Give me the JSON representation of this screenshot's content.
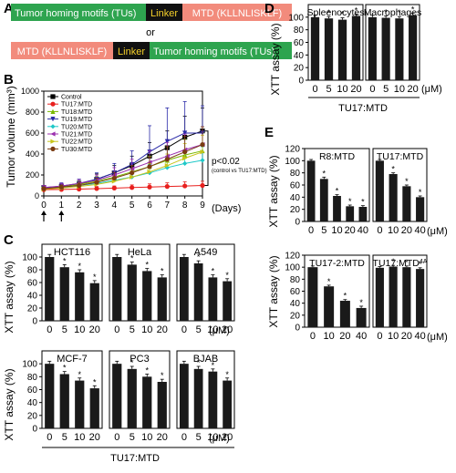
{
  "colors": {
    "green": "#2ea44f",
    "salmon": "#f28b7c",
    "linker_bg": "#111111",
    "linker_text": "#f5d02a",
    "bar": "#1a1a1a"
  },
  "panel_a": {
    "letter": "A",
    "row1": {
      "tus": "Tumor homing motifs (TUs)",
      "linker": "Linker",
      "mtd": "MTD (KLLNLISKLF)"
    },
    "or_text": "or",
    "row2": {
      "mtd": "MTD (KLLNLISKLF)",
      "linker": "Linker",
      "tus": "Tumor homing motifs (TUs)"
    }
  },
  "panel_b": {
    "letter": "B",
    "chart_data": {
      "type": "line",
      "ylabel": "Tumor volume (mm³)",
      "xlabel": "(Days)",
      "x": [
        0,
        1,
        2,
        3,
        4,
        5,
        6,
        7,
        8,
        9
      ],
      "xlim": [
        0,
        9
      ],
      "ylim": [
        0,
        1000
      ],
      "yticks": [
        0,
        200,
        400,
        600,
        800,
        1000
      ],
      "annotation": "p<0.02",
      "annotation_sub": "(control vs TU17:MTD)",
      "series": [
        {
          "name": "Control",
          "color": "#000000",
          "marker": "square",
          "values": [
            80,
            90,
            110,
            160,
            220,
            290,
            380,
            460,
            560,
            620
          ],
          "err": [
            20,
            25,
            30,
            50,
            70,
            90,
            130,
            160,
            200,
            220
          ]
        },
        {
          "name": "TU17:MTD",
          "color": "#e8201e",
          "marker": "circle",
          "values": [
            60,
            62,
            65,
            70,
            75,
            80,
            85,
            90,
            95,
            100
          ],
          "err": [
            15,
            15,
            18,
            20,
            20,
            25,
            30,
            35,
            40,
            40
          ]
        },
        {
          "name": "TU18:MTD",
          "color": "#7ab800",
          "marker": "triangle",
          "values": [
            70,
            85,
            110,
            140,
            180,
            230,
            280,
            340,
            390,
            430
          ],
          "err": [
            20,
            25,
            35,
            45,
            60,
            80,
            100,
            130,
            150,
            170
          ]
        },
        {
          "name": "TU19:MTD",
          "color": "#2a2aa8",
          "marker": "triangle-down",
          "values": [
            75,
            95,
            120,
            160,
            220,
            300,
            420,
            520,
            600,
            600
          ],
          "err": [
            20,
            30,
            40,
            60,
            90,
            130,
            250,
            320,
            300,
            260
          ]
        },
        {
          "name": "TU20:MTD",
          "color": "#1ec8c8",
          "marker": "diamond",
          "values": [
            70,
            80,
            100,
            120,
            150,
            180,
            220,
            270,
            310,
            340
          ],
          "err": [
            15,
            20,
            25,
            35,
            45,
            60,
            80,
            100,
            120,
            130
          ]
        },
        {
          "name": "TU21:MTD",
          "color": "#9b2fae",
          "marker": "triangle-left",
          "values": [
            80,
            95,
            120,
            150,
            200,
            260,
            320,
            380,
            440,
            490
          ],
          "err": [
            20,
            25,
            35,
            50,
            70,
            90,
            110,
            130,
            150,
            170
          ]
        },
        {
          "name": "TU22:MTD",
          "color": "#c7c41a",
          "marker": "triangle-right",
          "values": [
            65,
            75,
            90,
            110,
            140,
            180,
            230,
            290,
            360,
            420
          ],
          "err": [
            15,
            20,
            25,
            35,
            45,
            60,
            80,
            110,
            140,
            160
          ]
        },
        {
          "name": "TU30:MTD",
          "color": "#7a3b12",
          "marker": "circle",
          "values": [
            70,
            85,
            100,
            130,
            170,
            220,
            280,
            350,
            420,
            490
          ],
          "err": [
            15,
            20,
            30,
            40,
            55,
            70,
            90,
            120,
            150,
            170
          ]
        }
      ]
    }
  },
  "panel_c": {
    "letter": "C",
    "ylabel": "XTT assay (%)",
    "xticks": [
      "0",
      "5",
      "10",
      "20"
    ],
    "unit": "(μM)",
    "footer": "TU17:MTD",
    "chart_data": [
      {
        "type": "bar",
        "title": "HCT116",
        "categories": [
          "0",
          "5",
          "10",
          "20"
        ],
        "values": [
          100,
          84,
          76,
          59
        ],
        "err": [
          4,
          4,
          4,
          4
        ],
        "sig": [
          false,
          true,
          true,
          true
        ],
        "ylim": [
          0,
          120
        ]
      },
      {
        "type": "bar",
        "title": "HeLa",
        "categories": [
          "0",
          "5",
          "10",
          "20"
        ],
        "values": [
          100,
          88,
          78,
          68
        ],
        "err": [
          4,
          4,
          4,
          4
        ],
        "sig": [
          false,
          true,
          true,
          true
        ],
        "ylim": [
          0,
          120
        ]
      },
      {
        "type": "bar",
        "title": "A549",
        "categories": [
          "0",
          "5",
          "10",
          "20"
        ],
        "values": [
          100,
          90,
          68,
          62
        ],
        "err": [
          4,
          4,
          4,
          4
        ],
        "sig": [
          false,
          true,
          true,
          true
        ],
        "ylim": [
          0,
          120
        ]
      },
      {
        "type": "bar",
        "title": "MCF-7",
        "categories": [
          "0",
          "5",
          "10",
          "20"
        ],
        "values": [
          100,
          84,
          74,
          62
        ],
        "err": [
          4,
          4,
          4,
          4
        ],
        "sig": [
          false,
          true,
          true,
          true
        ],
        "ylim": [
          0,
          120
        ]
      },
      {
        "type": "bar",
        "title": "PC3",
        "categories": [
          "0",
          "5",
          "10",
          "20"
        ],
        "values": [
          100,
          92,
          80,
          72
        ],
        "err": [
          4,
          4,
          4,
          4
        ],
        "sig": [
          false,
          true,
          true,
          true
        ],
        "ylim": [
          0,
          120
        ]
      },
      {
        "type": "bar",
        "title": "BJAB",
        "categories": [
          "0",
          "5",
          "10",
          "20"
        ],
        "values": [
          100,
          92,
          88,
          74
        ],
        "err": [
          4,
          4,
          4,
          4
        ],
        "sig": [
          false,
          true,
          true,
          true
        ],
        "ylim": [
          0,
          120
        ]
      }
    ]
  },
  "panel_d": {
    "letter": "D",
    "ylabel": "XTT assay (%)",
    "unit": "(μM)",
    "footer": "TU17:MTD",
    "chart_data": [
      {
        "type": "bar",
        "title": "Spleenocytes",
        "categories": [
          "0",
          "5",
          "10",
          "20"
        ],
        "values": [
          100,
          98,
          96,
          102
        ],
        "err": [
          3,
          3,
          3,
          3
        ],
        "sig": [
          false,
          true,
          true,
          true
        ],
        "ylim": [
          0,
          120
        ]
      },
      {
        "type": "bar",
        "title": "Macrophages",
        "categories": [
          "0",
          "5",
          "10",
          "20"
        ],
        "values": [
          100,
          99,
          98,
          103
        ],
        "err": [
          3,
          3,
          3,
          3
        ],
        "sig": [
          false,
          true,
          true,
          true
        ],
        "ylim": [
          0,
          120
        ]
      }
    ]
  },
  "panel_e": {
    "letter": "E",
    "ylabel": "XTT assay (%)",
    "unit": "(μM)",
    "chart_data": [
      {
        "type": "bar",
        "title": "R8:MTD",
        "categories": [
          "0",
          "5",
          "10",
          "20",
          "40"
        ],
        "values": [
          100,
          70,
          42,
          25,
          24
        ],
        "err": [
          2,
          3,
          2,
          2,
          2
        ],
        "sig": [
          false,
          true,
          true,
          true,
          true
        ],
        "ylim": [
          0,
          120
        ]
      },
      {
        "type": "bar",
        "title": "TU17:MTD",
        "categories": [
          "0",
          "10",
          "20",
          "40"
        ],
        "values": [
          100,
          78,
          58,
          40
        ],
        "err": [
          2,
          2,
          2,
          2
        ],
        "sig": [
          false,
          true,
          true,
          true
        ],
        "ylim": [
          0,
          120
        ]
      },
      {
        "type": "bar",
        "title": "TU17-2:MTD",
        "categories": [
          "0",
          "10",
          "20",
          "40"
        ],
        "values": [
          100,
          68,
          44,
          32
        ],
        "err": [
          2,
          2,
          2,
          3
        ],
        "sig": [
          false,
          true,
          true,
          true
        ],
        "ylim": [
          0,
          120
        ]
      },
      {
        "type": "bar",
        "title": "TU17:MTD",
        "title_sup": "4A",
        "categories": [
          "0",
          "10",
          "20",
          "40"
        ],
        "values": [
          99,
          101,
          100,
          97
        ],
        "err": [
          2,
          2,
          2,
          2
        ],
        "sig": [
          false,
          true,
          true,
          true
        ],
        "ylim": [
          0,
          120
        ]
      }
    ]
  }
}
